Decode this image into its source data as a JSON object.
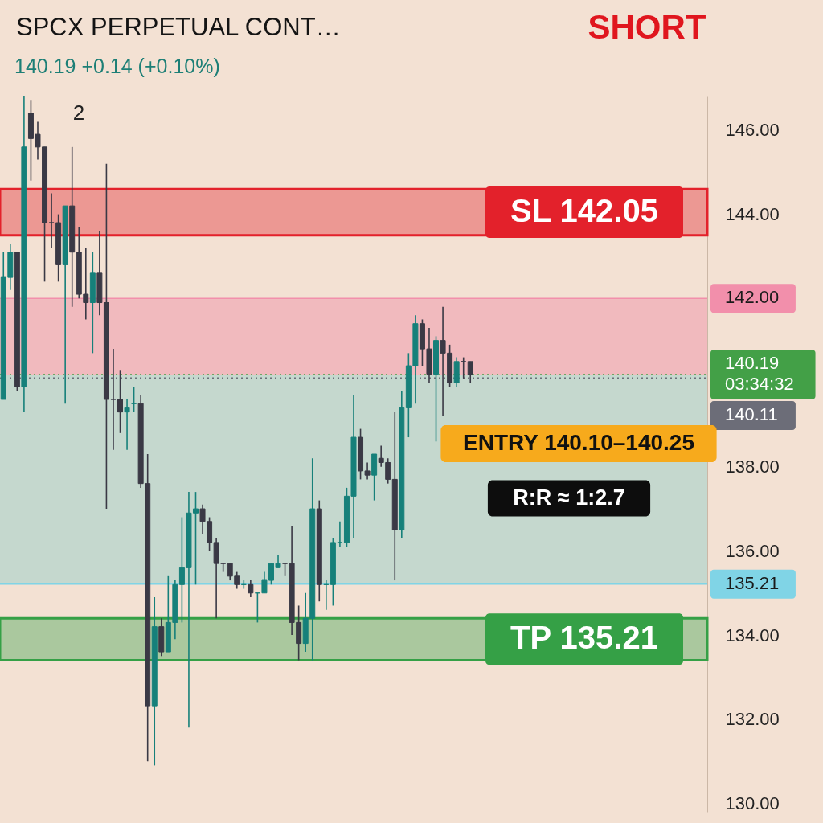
{
  "chart_data": {
    "type": "candlestick",
    "title": "SPCX PERPETUAL CONT…",
    "subtitle": "140.19 +0.14 (+0.10%)",
    "categories": [
      null,
      null,
      null,
      null,
      null,
      null,
      null,
      null,
      null,
      null,
      null,
      null,
      null,
      null,
      null,
      null,
      null,
      null,
      null,
      null,
      null,
      null,
      null,
      null,
      null,
      null,
      null,
      null,
      null,
      null,
      null,
      null,
      null,
      null,
      null,
      null,
      null,
      null,
      null,
      null,
      null,
      null,
      null,
      null,
      null,
      null,
      null,
      null,
      null,
      null,
      null,
      null,
      null,
      null,
      null,
      null,
      null,
      null,
      null,
      null,
      null,
      null,
      null,
      null,
      null,
      null,
      null,
      null,
      null,
      null,
      null,
      null,
      null,
      null,
      null,
      null,
      null,
      null,
      null,
      null,
      null,
      null,
      null,
      null,
      null,
      null,
      null,
      null,
      null,
      null,
      null,
      null,
      null,
      null,
      null,
      null,
      null,
      null,
      null,
      null,
      null,
      null,
      null
    ],
    "ohlc": [
      [
        139.6,
        143.1,
        139.6,
        142.5
      ],
      [
        142.5,
        143.3,
        142.2,
        143.1
      ],
      [
        143.1,
        143.1,
        139.8,
        139.9
      ],
      [
        139.9,
        146.8,
        139.3,
        145.6
      ],
      [
        146.4,
        146.7,
        144.8,
        145.8
      ],
      [
        145.9,
        146.2,
        145.3,
        145.6
      ],
      [
        145.6,
        145.6,
        142.4,
        143.8
      ],
      [
        143.8,
        144.5,
        143.2,
        143.8
      ],
      [
        143.8,
        144.0,
        142.4,
        142.8
      ],
      [
        142.8,
        144.2,
        139.5,
        144.2
      ],
      [
        144.2,
        145.6,
        141.8,
        143.1
      ],
      [
        143.1,
        143.7,
        142.0,
        142.1
      ],
      [
        142.1,
        143.2,
        141.5,
        141.9
      ],
      [
        141.9,
        143.1,
        140.7,
        142.6
      ],
      [
        142.6,
        143.6,
        141.6,
        141.9
      ],
      [
        141.9,
        145.2,
        137.0,
        139.6
      ],
      [
        139.6,
        140.8,
        138.4,
        139.6
      ],
      [
        139.6,
        140.3,
        138.8,
        139.3
      ],
      [
        139.3,
        139.6,
        138.4,
        139.4
      ],
      [
        139.5,
        139.9,
        139.3,
        139.5
      ],
      [
        139.5,
        139.7,
        137.5,
        137.6
      ],
      [
        137.6,
        138.3,
        131.0,
        132.3
      ],
      [
        132.3,
        134.9,
        130.9,
        134.2
      ],
      [
        134.2,
        134.4,
        133.5,
        133.6
      ],
      [
        133.6,
        135.4,
        133.6,
        134.3
      ],
      [
        134.3,
        135.3,
        133.9,
        135.2
      ],
      [
        135.2,
        136.8,
        134.3,
        135.6
      ],
      [
        135.6,
        137.4,
        131.8,
        136.9
      ],
      [
        136.9,
        137.4,
        135.2,
        137.0
      ],
      [
        137.0,
        137.1,
        136.4,
        136.7
      ],
      [
        136.7,
        136.8,
        136.0,
        136.2
      ],
      [
        136.2,
        136.3,
        134.4,
        135.7
      ],
      [
        135.7,
        135.7,
        135.5,
        135.7
      ],
      [
        135.7,
        135.7,
        135.3,
        135.4
      ],
      [
        135.4,
        135.5,
        135.1,
        135.2
      ],
      [
        135.2,
        135.3,
        135.1,
        135.2
      ],
      [
        135.2,
        135.3,
        134.9,
        135.0
      ],
      [
        135.0,
        135.0,
        134.3,
        135.0
      ],
      [
        135.0,
        135.5,
        135.0,
        135.3
      ],
      [
        135.3,
        135.7,
        135.2,
        135.7
      ],
      [
        135.6,
        135.9,
        135.6,
        135.7
      ],
      [
        135.7,
        135.7,
        135.4,
        135.7
      ],
      [
        135.7,
        136.6,
        134.0,
        134.3
      ],
      [
        134.3,
        134.7,
        133.4,
        133.8
      ],
      [
        133.8,
        135.0,
        133.6,
        134.4
      ],
      [
        134.4,
        138.2,
        133.4,
        137.0
      ],
      [
        137.0,
        137.2,
        134.8,
        135.2
      ],
      [
        135.2,
        135.3,
        134.6,
        135.2
      ],
      [
        135.2,
        136.3,
        134.7,
        136.2
      ],
      [
        136.2,
        136.7,
        136.1,
        136.2
      ],
      [
        136.2,
        137.5,
        136.1,
        137.3
      ],
      [
        137.3,
        139.7,
        136.3,
        138.7
      ],
      [
        138.7,
        138.9,
        137.7,
        137.9
      ],
      [
        137.9,
        138.1,
        137.7,
        137.8
      ],
      [
        137.8,
        138.3,
        137.2,
        138.3
      ],
      [
        138.2,
        138.5,
        138.0,
        138.1
      ],
      [
        138.1,
        138.2,
        137.6,
        137.7
      ],
      [
        137.7,
        139.3,
        135.3,
        136.5
      ],
      [
        136.5,
        139.8,
        136.3,
        139.4
      ],
      [
        139.4,
        140.7,
        138.7,
        140.4
      ],
      [
        140.4,
        141.6,
        139.5,
        141.4
      ],
      [
        141.4,
        141.5,
        140.4,
        140.8
      ],
      [
        140.8,
        141.3,
        140.0,
        140.2
      ],
      [
        140.2,
        141.1,
        138.6,
        141.0
      ],
      [
        141.0,
        141.8,
        139.2,
        140.7
      ],
      [
        140.7,
        140.9,
        139.9,
        140.0
      ],
      [
        140.0,
        140.6,
        139.9,
        140.5
      ],
      [
        140.5,
        140.6,
        140.1,
        140.5
      ],
      [
        140.5,
        140.5,
        140.0,
        140.19
      ],
      null,
      null,
      null,
      null,
      null,
      null,
      null,
      null,
      null,
      null,
      null,
      null,
      null,
      null,
      null,
      null,
      null,
      null,
      null,
      null,
      null,
      null,
      null,
      null,
      null,
      null,
      null,
      null,
      null,
      null,
      null,
      null,
      null,
      null
    ],
    "colors": [
      "#16807a",
      "#16807a",
      "#3a3945",
      "#16807a",
      "#3a3945",
      "#3a3945",
      "#3a3945",
      "#3a3945",
      "#3a3945",
      "#16807a",
      "#3a3945",
      "#3a3945",
      "#3a3945",
      "#16807a",
      "#3a3945",
      "#3a3945",
      "#3a3945",
      "#3a3945",
      "#16807a",
      "#16807a",
      "#3a3945",
      "#3a3945",
      "#16807a",
      "#3a3945",
      "#16807a",
      "#16807a",
      "#16807a",
      "#16807a",
      "#16807a",
      "#3a3945",
      "#3a3945",
      "#3a3945",
      "#3a3945",
      "#3a3945",
      "#3a3945",
      "#16807a",
      "#3a3945",
      "#16807a",
      "#16807a",
      "#16807a",
      "#16807a",
      "#3a3945",
      "#3a3945",
      "#3a3945",
      "#16807a",
      "#16807a",
      "#3a3945",
      "#16807a",
      "#16807a",
      "#16807a",
      "#16807a",
      "#16807a",
      "#3a3945",
      "#3a3945",
      "#16807a",
      "#3a3945",
      "#3a3945",
      "#3a3945",
      "#16807a",
      "#16807a",
      "#16807a",
      "#3a3945",
      "#3a3945",
      "#16807a",
      "#3a3945",
      "#3a3945",
      "#16807a",
      "#3a3945",
      "#3a3945",
      null,
      null,
      null,
      null,
      null,
      null,
      null,
      null,
      null,
      null,
      null,
      null,
      null,
      null,
      null,
      null,
      null,
      null,
      null,
      null,
      null,
      null,
      null,
      null,
      null,
      null,
      null,
      null,
      null,
      null,
      null,
      null,
      null,
      null
    ],
    "ylim": [
      129.8,
      146.8
    ],
    "yticks": [
      {
        "value": 130,
        "label": "130.00"
      },
      {
        "value": 132,
        "label": "132.00"
      },
      {
        "value": 134,
        "label": "134.00"
      },
      {
        "value": 136,
        "label": "136.00"
      },
      {
        "value": 138,
        "label": "138.00"
      },
      {
        "value": 144,
        "label": "144.00"
      },
      {
        "value": 146,
        "label": "146.00"
      }
    ],
    "tick_labels": "y",
    "bands": [
      {
        "axis": "y",
        "from": 143.5,
        "to": 144.6,
        "label": "SL 142.05",
        "color": "#e3212b"
      },
      {
        "axis": "y",
        "from": 133.4,
        "to": 134.4,
        "label": "TP 135.21",
        "color": "#35a046"
      },
      {
        "axis": "y",
        "from": 140.19,
        "to": 142.0,
        "color": "#f07b9a"
      },
      {
        "axis": "y",
        "from": 135.21,
        "to": 140.19,
        "color": "#7ccac6"
      }
    ],
    "ref_lines": [
      {
        "axis": "y",
        "value": 142.0,
        "label": "142.00",
        "color": "#f28fab",
        "line_style": "solid"
      },
      {
        "axis": "y",
        "value": 140.19,
        "label": "140.19\n03:34:32",
        "color": "#43a047",
        "line_style": "dotted"
      },
      {
        "axis": "y",
        "value": 140.11,
        "label": "140.11",
        "color": "#6c6d78",
        "line_style": "dotted"
      },
      {
        "axis": "y",
        "value": 135.21,
        "label": "135.21",
        "color": "#80d4e6",
        "line_style": "solid"
      }
    ],
    "annotations": [
      "SHORT",
      "ENTRY 140.10–140.25",
      "R:R ≈ 1:2.7",
      "2"
    ]
  }
}
